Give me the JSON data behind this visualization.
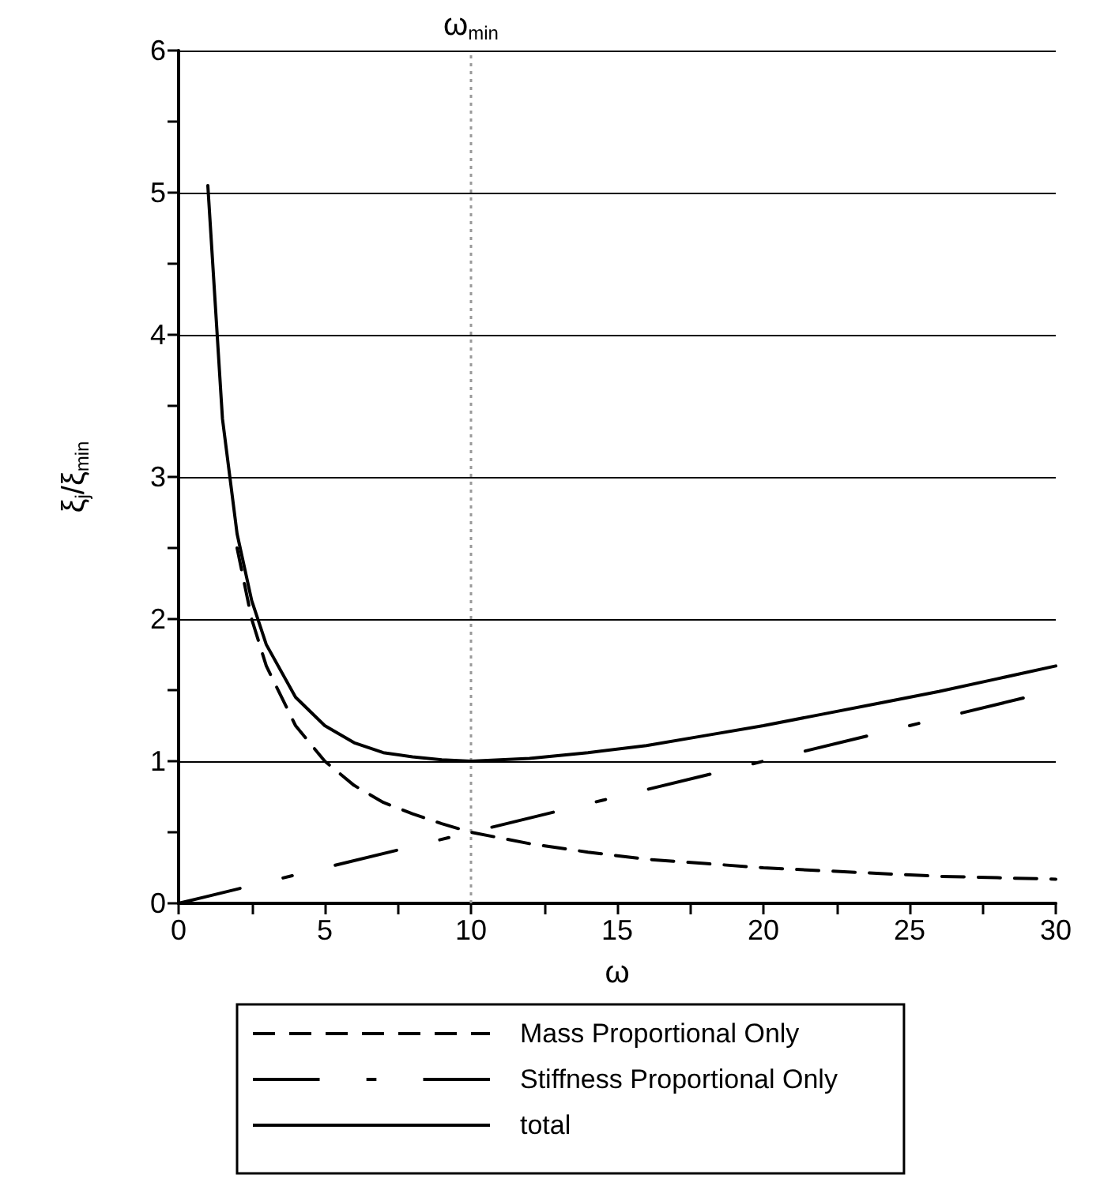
{
  "chart_data": {
    "type": "line",
    "xlabel": "ω",
    "ylabel": "ξ$_{j}$/ξ$_{min}$",
    "xlim": [
      0,
      30
    ],
    "xticks": [
      0,
      {
        "value": 2.5,
        "label": null
      },
      5,
      {
        "value": 7.5,
        "label": null
      },
      10,
      {
        "value": 12.5,
        "label": null
      },
      15,
      {
        "value": 17.5,
        "label": null
      },
      20,
      {
        "value": 22.5,
        "label": null
      },
      25,
      {
        "value": 27.5,
        "label": null
      },
      30
    ],
    "ylim": [
      0,
      6
    ],
    "yticks": [
      0,
      {
        "value": 0.5,
        "label": null
      },
      1,
      {
        "value": 1.5,
        "label": null
      },
      2,
      {
        "value": 2.5,
        "label": null
      },
      3,
      {
        "value": 3.5,
        "label": null
      },
      4,
      {
        "value": 4.5,
        "label": null
      },
      5,
      {
        "value": 5.5,
        "label": null
      },
      6
    ],
    "grid": "y",
    "legend": "bottom",
    "marker": "none",
    "ref_lines": [
      {
        "axis": "x",
        "value": 10,
        "label": "ω$_{min}$",
        "color": "#999999",
        "line_style": "dotted"
      }
    ],
    "series": [
      {
        "name": "Mass Proportional Only",
        "color": "#000000",
        "line_style": "dashed",
        "x": [
          2,
          2.5,
          3,
          4,
          5,
          6,
          7,
          8,
          9,
          10,
          12,
          14,
          16,
          18,
          20,
          22,
          24,
          26,
          28,
          30
        ],
        "values": [
          2.5,
          2,
          1.67,
          1.25,
          1,
          0.83,
          0.71,
          0.63,
          0.56,
          0.5,
          0.42,
          0.36,
          0.31,
          0.28,
          0.25,
          0.23,
          0.21,
          0.19,
          0.18,
          0.17
        ]
      },
      {
        "name": "Stiffness Proportional Only",
        "color": "#000000",
        "line_style": "dashed",
        "x": [
          0,
          29
        ],
        "values": [
          0,
          1.45
        ]
      },
      {
        "name": "total",
        "color": "#000000",
        "line_style": "solid",
        "x": [
          1,
          1.5,
          2,
          2.5,
          3,
          4,
          5,
          6,
          7,
          8,
          9,
          10,
          12,
          14,
          16,
          18,
          20,
          22,
          24,
          26,
          28,
          30
        ],
        "values": [
          5.05,
          3.41,
          2.6,
          2.13,
          1.82,
          1.45,
          1.25,
          1.13,
          1.06,
          1.03,
          1.01,
          1,
          1.02,
          1.06,
          1.11,
          1.18,
          1.25,
          1.33,
          1.41,
          1.49,
          1.58,
          1.67
        ]
      }
    ]
  }
}
